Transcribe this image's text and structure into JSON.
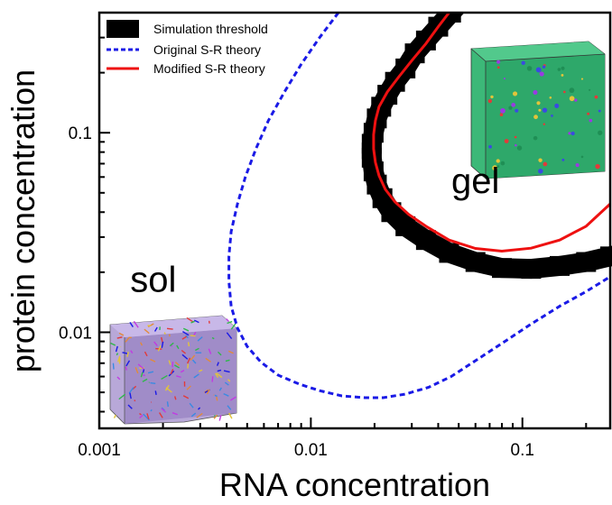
{
  "chart_data": {
    "type": "line",
    "title": "",
    "xlabel": "RNA concentration",
    "ylabel": "protein concentration",
    "x_scale": "log",
    "y_scale": "log",
    "xlim": [
      0.001,
      0.26
    ],
    "ylim": [
      0.0033,
      0.4
    ],
    "grid": false,
    "legend_position": "top-left",
    "x_ticks": [
      {
        "value": 0.001,
        "label": "0.001"
      },
      {
        "value": 0.01,
        "label": "0.01"
      },
      {
        "value": 0.1,
        "label": "0.1"
      }
    ],
    "y_ticks": [
      {
        "value": 0.01,
        "label": "0.01"
      },
      {
        "value": 0.1,
        "label": "0.1"
      }
    ],
    "series": [
      {
        "name": "Simulation threshold",
        "style": "thick-square",
        "color": "#000000",
        "x": [
          0.046,
          0.04,
          0.035,
          0.031,
          0.028,
          0.025,
          0.023,
          0.0215,
          0.0205,
          0.0198,
          0.0194,
          0.0194,
          0.0198,
          0.0205,
          0.0218,
          0.024,
          0.028,
          0.035,
          0.045,
          0.06,
          0.08,
          0.11,
          0.15,
          0.2,
          0.26
        ],
        "y": [
          0.4,
          0.34,
          0.29,
          0.25,
          0.21,
          0.18,
          0.155,
          0.135,
          0.118,
          0.1,
          0.088,
          0.075,
          0.064,
          0.055,
          0.047,
          0.04,
          0.034,
          0.029,
          0.025,
          0.0225,
          0.021,
          0.0208,
          0.0215,
          0.0225,
          0.024
        ]
      },
      {
        "name": "Original S-R theory",
        "style": "dashed",
        "color": "#1a1ae6",
        "x": [
          0.0135,
          0.011,
          0.009,
          0.0075,
          0.0063,
          0.0055,
          0.0049,
          0.0045,
          0.0042,
          0.0041,
          0.0041,
          0.0042,
          0.0045,
          0.005,
          0.0058,
          0.007,
          0.0088,
          0.011,
          0.014,
          0.018,
          0.022,
          0.028,
          0.036,
          0.046,
          0.06,
          0.08,
          0.11,
          0.15,
          0.2,
          0.26
        ],
        "y": [
          0.4,
          0.3,
          0.22,
          0.16,
          0.115,
          0.083,
          0.06,
          0.044,
          0.032,
          0.024,
          0.018,
          0.0135,
          0.0105,
          0.0085,
          0.0071,
          0.0061,
          0.0055,
          0.0051,
          0.0048,
          0.0047,
          0.0047,
          0.0049,
          0.0053,
          0.006,
          0.0072,
          0.0088,
          0.011,
          0.0135,
          0.016,
          0.019
        ]
      },
      {
        "name": "Modified S-R theory",
        "style": "solid",
        "color": "#ee1111",
        "x": [
          0.045,
          0.04,
          0.035,
          0.03,
          0.026,
          0.023,
          0.021,
          0.0202,
          0.0198,
          0.0198,
          0.0202,
          0.021,
          0.0225,
          0.025,
          0.029,
          0.035,
          0.045,
          0.06,
          0.08,
          0.11,
          0.15,
          0.2,
          0.26
        ],
        "y": [
          0.4,
          0.34,
          0.28,
          0.23,
          0.19,
          0.16,
          0.135,
          0.115,
          0.098,
          0.083,
          0.071,
          0.061,
          0.052,
          0.045,
          0.039,
          0.034,
          0.029,
          0.0263,
          0.0255,
          0.0264,
          0.029,
          0.034,
          0.044
        ]
      }
    ],
    "annotations": [
      {
        "text": "gel",
        "x": 0.06,
        "y": 0.05
      },
      {
        "text": "sol",
        "x": 0.0018,
        "y": 0.016
      }
    ],
    "insets": [
      {
        "name": "gel-simulation-box",
        "description_color": "#22aa66"
      },
      {
        "name": "sol-simulation-box",
        "description_color": "#8844cc"
      }
    ]
  }
}
